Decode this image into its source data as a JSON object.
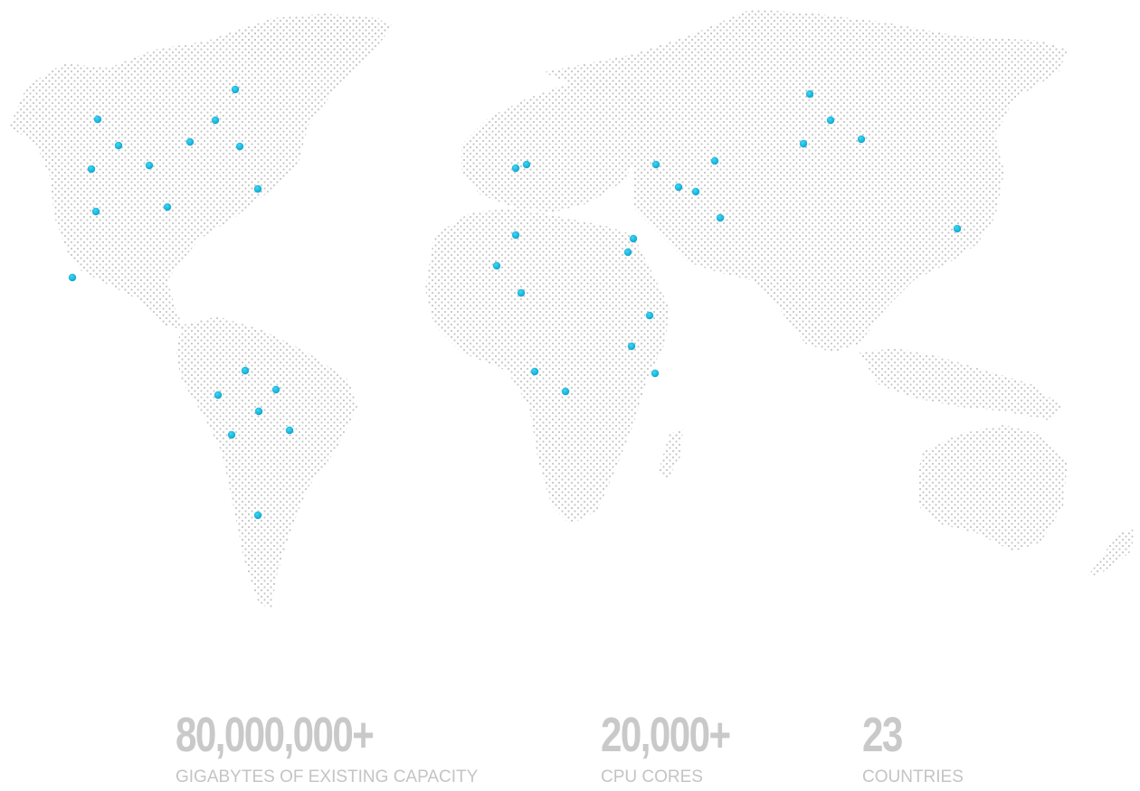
{
  "map": {
    "land_color": "#c6c6c6",
    "marker_color": "#1cb8e0",
    "marker_icon": "location-dot-icon",
    "marker_count": 46
  },
  "stats": [
    {
      "value": "80,000,000+",
      "label": "GIGABYTES OF EXISTING CAPACITY"
    },
    {
      "value": "20,000+",
      "label": "CPU CORES"
    },
    {
      "value": "23",
      "label": "COUNTRIES"
    }
  ],
  "colors": {
    "stat_text": "#c9c9c9",
    "background": "#ffffff"
  }
}
